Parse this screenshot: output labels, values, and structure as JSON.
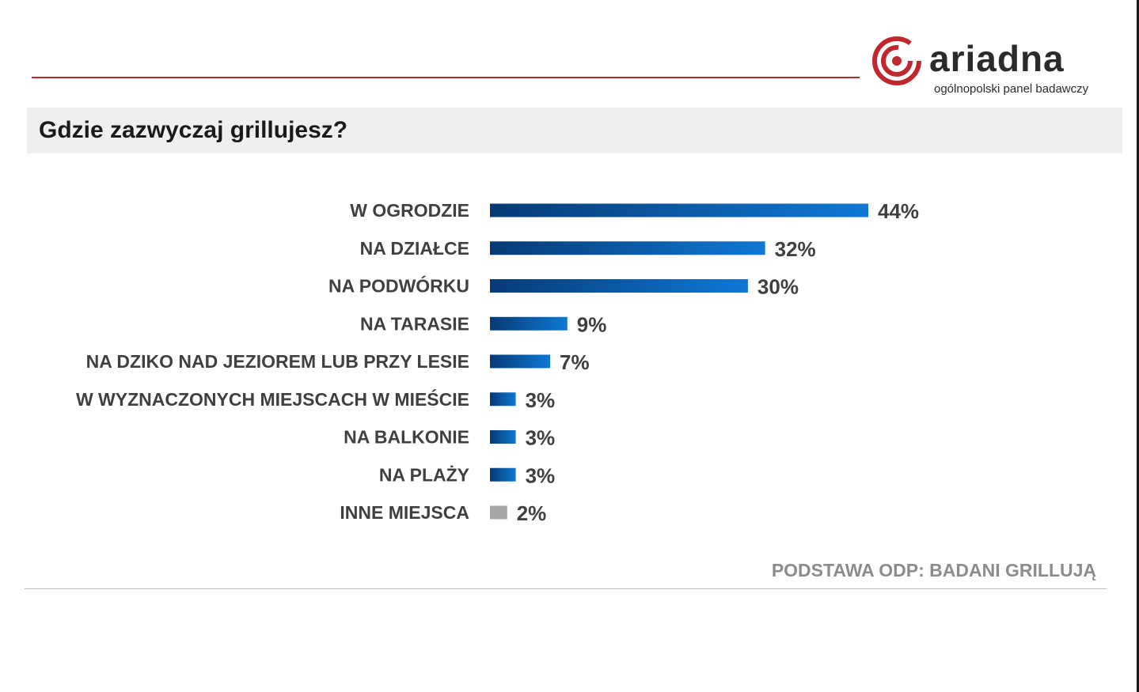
{
  "brand": {
    "name": "ariadna",
    "tagline": "ogólnopolski panel badawczy",
    "accent_color": "#c0282d"
  },
  "title": "Gdzie zazwyczaj grillujesz?",
  "footnote": "PODSTAWA ODP: BADANI GRILLUJĄ",
  "chart_data": {
    "type": "bar",
    "orientation": "horizontal",
    "title": "Gdzie zazwyczaj grillujesz?",
    "xlabel": "",
    "ylabel": "",
    "xlim": [
      0,
      44
    ],
    "grid": false,
    "categories": [
      "W OGRODZIE",
      "NA DZIAŁCE",
      "NA PODWÓRKU",
      "NA TARASIE",
      "NA DZIKO NAD JEZIOREM LUB PRZY LESIE",
      "W WYZNACZONYCH MIEJSCACH W MIEŚCIE",
      "NA BALKONIE",
      "NA PLAŻY",
      "INNE MIEJSCA"
    ],
    "values": [
      44,
      32,
      30,
      9,
      7,
      3,
      3,
      3,
      2
    ],
    "value_labels": [
      "44%",
      "32%",
      "30%",
      "9%",
      "7%",
      "3%",
      "3%",
      "3%",
      "2%"
    ],
    "bar_colors": [
      "#0b4a8b",
      "#0b4a8b",
      "#0b4a8b",
      "#0b4a8b",
      "#0b4a8b",
      "#0b4a8b",
      "#0b4a8b",
      "#0b4a8b",
      "#a6a6a6"
    ],
    "gradient": {
      "from": "#063a75",
      "to": "#0f78d4"
    }
  }
}
